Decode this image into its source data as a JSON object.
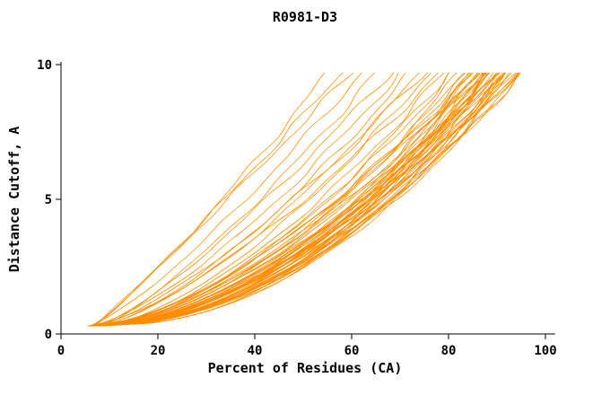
{
  "chart_data": {
    "type": "line",
    "title": "R0981-D3",
    "xlabel": "Percent of Residues (CA)",
    "ylabel": "Distance Cutoff, A",
    "xlim": [
      0,
      100
    ],
    "ylim": [
      0,
      10
    ],
    "x_ticks": [
      0,
      20,
      40,
      60,
      80,
      100
    ],
    "y_ticks": [
      0,
      5,
      10
    ],
    "grid": false,
    "legend_position": "none",
    "line_color": "#ff8c00",
    "axis_color": "#000000",
    "background_color": "#ffffff",
    "description": "Cumulative distance-cutoff curves for many predicted models of target R0981-D3; each curve is percent of CA residues (x) under a distance cutoff in Angstroms (y).",
    "series_model": "x(y) = x0 + (x1 - x0) * ((y - y_start)/(y_end - y_start))^p",
    "y_start": 0.3,
    "y_end": 9.7,
    "series_params": [
      [
        6.0,
        55,
        0.85
      ],
      [
        6.5,
        58,
        0.92
      ],
      [
        6.0,
        62,
        0.8
      ],
      [
        7.5,
        65,
        0.78
      ],
      [
        7.0,
        60,
        0.95
      ],
      [
        8.5,
        68,
        0.82
      ],
      [
        6.0,
        70,
        0.72
      ],
      [
        7.5,
        72,
        0.7
      ],
      [
        7.0,
        74,
        0.68
      ],
      [
        8.5,
        76,
        0.66
      ],
      [
        6.0,
        78,
        0.7
      ],
      [
        8.0,
        79,
        0.64
      ],
      [
        7.0,
        75,
        0.74
      ],
      [
        8.5,
        80,
        0.62
      ],
      [
        5.5,
        81,
        0.6
      ],
      [
        6.0,
        82,
        0.55
      ],
      [
        6.5,
        83,
        0.58
      ],
      [
        7.5,
        84,
        0.52
      ],
      [
        6.0,
        85,
        0.6
      ],
      [
        7.0,
        86,
        0.54
      ],
      [
        8.0,
        87,
        0.5
      ],
      [
        8.5,
        88,
        0.56
      ],
      [
        6.0,
        89,
        0.52
      ],
      [
        7.0,
        90,
        0.58
      ],
      [
        7.5,
        91,
        0.5
      ],
      [
        8.5,
        92,
        0.54
      ],
      [
        6.0,
        93,
        0.57
      ],
      [
        7.0,
        94,
        0.5
      ],
      [
        7.5,
        95,
        0.53
      ],
      [
        6.0,
        84,
        0.62
      ],
      [
        7.0,
        85,
        0.48
      ],
      [
        8.0,
        86,
        0.6
      ],
      [
        8.5,
        87,
        0.52
      ],
      [
        6.0,
        88,
        0.56
      ],
      [
        7.0,
        89,
        0.5
      ],
      [
        8.0,
        90,
        0.6
      ],
      [
        8.5,
        91,
        0.47
      ],
      [
        6.0,
        92,
        0.55
      ],
      [
        7.0,
        93,
        0.5
      ],
      [
        8.0,
        94,
        0.58
      ],
      [
        5.5,
        95,
        0.52
      ],
      [
        6.0,
        86,
        0.5
      ],
      [
        7.0,
        87,
        0.62
      ],
      [
        8.0,
        88,
        0.48
      ],
      [
        8.5,
        89,
        0.55
      ],
      [
        6.0,
        90,
        0.5
      ],
      [
        7.0,
        91,
        0.57
      ],
      [
        8.0,
        92,
        0.52
      ],
      [
        8.5,
        93,
        0.48
      ],
      [
        6.0,
        94,
        0.55
      ],
      [
        7.0,
        95,
        0.5
      ],
      [
        7.5,
        85,
        0.65
      ],
      [
        8.5,
        86,
        0.45
      ],
      [
        6.0,
        87,
        0.58
      ],
      [
        7.0,
        88,
        0.52
      ],
      [
        8.0,
        89,
        0.6
      ],
      [
        8.5,
        90,
        0.5
      ],
      [
        6.0,
        91,
        0.55
      ],
      [
        7.0,
        92,
        0.48
      ]
    ]
  }
}
